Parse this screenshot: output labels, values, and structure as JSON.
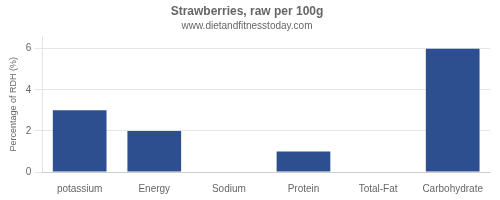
{
  "chart_data": {
    "type": "bar",
    "title": "Strawberries, raw per 100g",
    "subtitle": "www.dietandfitnesstoday.com",
    "categories": [
      "potassium",
      "Energy",
      "Sodium",
      "Protein",
      "Total-Fat",
      "Carbohydrate"
    ],
    "values": [
      3.0,
      2.0,
      0.0,
      1.0,
      0.0,
      6.0
    ],
    "color": "#2e4f8f",
    "ylabel": "Percentage of RDH (%)",
    "ylim": [
      0,
      6.6
    ],
    "yticks": [
      0,
      2,
      4,
      6
    ],
    "grid": true
  }
}
